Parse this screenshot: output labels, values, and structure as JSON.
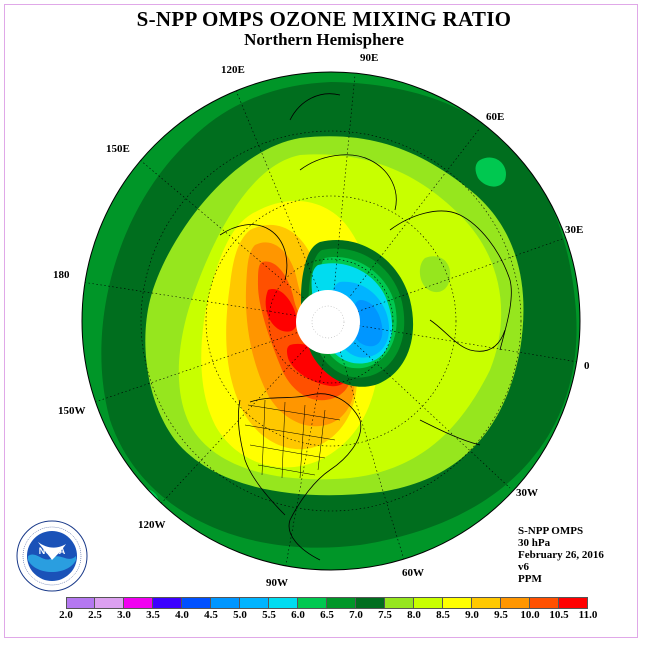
{
  "title": "S-NPP OMPS OZONE MIXING RATIO",
  "subtitle": "Northern Hemisphere",
  "longitude_labels": {
    "lon_90e": "90E",
    "lon_60e": "60E",
    "lon_30e": "30E",
    "lon_0": "0",
    "lon_30w": "30W",
    "lon_60w": "60W",
    "lon_90w": "90W",
    "lon_120w": "120W",
    "lon_150w": "150W",
    "lon_180": "180",
    "lon_150e": "150E",
    "lon_120e": "120E"
  },
  "info": {
    "instrument": "S-NPP OMPS",
    "level": "30 hPa",
    "date": "February 26, 2016",
    "version": "v6",
    "units": "PPM"
  },
  "colorbar": {
    "ticks": [
      "2.0",
      "2.5",
      "3.0",
      "3.5",
      "4.0",
      "4.5",
      "5.0",
      "5.5",
      "6.0",
      "6.5",
      "7.0",
      "7.5",
      "8.0",
      "8.5",
      "9.0",
      "9.5",
      "10.0",
      "10.5",
      "11.0"
    ],
    "colors": [
      "#b478f0",
      "#dca0f0",
      "#f000f0",
      "#3c00ff",
      "#0050ff",
      "#0096ff",
      "#00b4ff",
      "#00dcf0",
      "#00c850",
      "#009628",
      "#006e1e",
      "#96e61e",
      "#c8ff00",
      "#ffff00",
      "#ffc800",
      "#ff9600",
      "#ff5000",
      "#ff0000",
      "#8c3c1e"
    ]
  },
  "map_colors": {
    "v6_5": "#009628",
    "v7_0": "#006e1e",
    "v7_5": "#96e61e",
    "v8_0": "#c8ff00",
    "v8_5": "#ffff00",
    "v9_0": "#ffc800",
    "v9_5": "#ff9600",
    "v10_0": "#ff5000",
    "v10_5": "#ff0000",
    "v6_0": "#00c850",
    "v5_5": "#00dcf0",
    "v5_0": "#00b4ff",
    "v4_5": "#0096ff"
  },
  "logo_text": "NOAA"
}
